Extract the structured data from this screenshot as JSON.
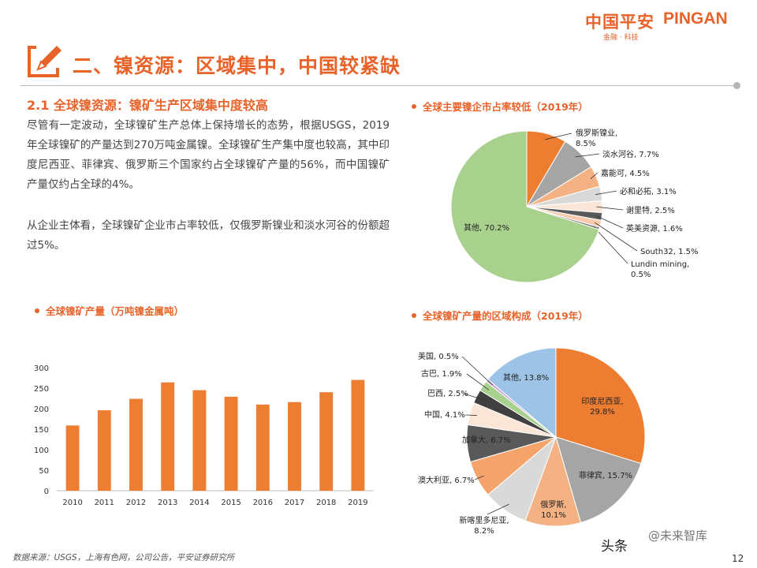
{
  "header": {
    "brand_cn": "中国平安",
    "brand_en": "PINGAN",
    "brand_sub": "金融 · 科技",
    "section_title": "二、镍资源：区域集中，中国较紧缺",
    "subsection_title": "2.1 全球镍资源：镍矿生产区域集中度较高"
  },
  "body": {
    "paragraph1": "尽管有一定波动，全球镍矿生产总体上保持增长的态势，根据USGS，2019年全球镍矿的产量达到270万吨金属镍。全球镍矿生产集中度也较高，其中印度尼西亚、菲律宾、俄罗斯三个国家约占全球镍矿产量的56%，而中国镍矿产量仅约占全球的4%。",
    "paragraph2": "从企业主体看，全球镍矿企业市占率较低，仅俄罗斯镍业和淡水河谷的份额超过5%。"
  },
  "footer": {
    "source": "数据来源：USGS，上海有色网，公司公告，平安证券研究所",
    "page_number": "12",
    "watermark_source": "头条",
    "watermark_badge": "@未来智库"
  },
  "colors": {
    "brand": "#e8632a",
    "bar": "#ed7d31"
  },
  "chart_data": [
    {
      "type": "pie",
      "title": "全球主要镍企市占率较低（2019年）",
      "slices": [
        {
          "label": "俄罗斯镍业, 8.5%",
          "name": "俄罗斯镍业",
          "value": 8.5,
          "color": "#ed7d31"
        },
        {
          "label": "淡水河谷, 7.7%",
          "name": "淡水河谷",
          "value": 7.7,
          "color": "#a5a5a5"
        },
        {
          "label": "嘉能可, 4.5%",
          "name": "嘉能可",
          "value": 4.5,
          "color": "#f4b183"
        },
        {
          "label": "必和必拓, 3.1%",
          "name": "必和必拓",
          "value": 3.1,
          "color": "#d9d9d9"
        },
        {
          "label": "谢里特, 2.5%",
          "name": "谢里特",
          "value": 2.5,
          "color": "#fbe5d6"
        },
        {
          "label": "英美资源, 1.6%",
          "name": "英美资源",
          "value": 1.6,
          "color": "#595959"
        },
        {
          "label": "South32, 1.5%",
          "name": "South32",
          "value": 1.5,
          "color": "#f8cbad"
        },
        {
          "label": "Lundin mining, 0.5%",
          "name": "Lundin mining",
          "value": 0.5,
          "color": "#7f7f7f"
        },
        {
          "label": "其他, 70.2%",
          "name": "其他",
          "value": 70.2,
          "color": "#a9d18e"
        }
      ]
    },
    {
      "type": "bar",
      "title": "全球镍矿产量（万吨镍金属吨）",
      "categories": [
        "2010",
        "2011",
        "2012",
        "2013",
        "2014",
        "2015",
        "2016",
        "2017",
        "2018",
        "2019"
      ],
      "values": [
        159,
        196,
        224,
        264,
        245,
        229,
        210,
        216,
        240,
        270
      ],
      "ylim": [
        0,
        300
      ],
      "yticks": [
        "0",
        "50",
        "100",
        "150",
        "200",
        "250",
        "300"
      ],
      "grid": false
    },
    {
      "type": "pie",
      "title": "全球镍矿产量的区域构成（2019年）",
      "slices": [
        {
          "label": "印度尼西亚, 29.8%",
          "name": "印度尼西亚",
          "value": 29.8,
          "color": "#ed7d31"
        },
        {
          "label": "菲律宾, 15.7%",
          "name": "菲律宾",
          "value": 15.7,
          "color": "#a5a5a5"
        },
        {
          "label": "俄罗斯, 10.1%",
          "name": "俄罗斯",
          "value": 10.1,
          "color": "#f4b183"
        },
        {
          "label": "新喀里多尼亚, 8.2%",
          "name": "新喀里多尼亚",
          "value": 8.2,
          "color": "#d9d9d9"
        },
        {
          "label": "澳大利亚, 6.7%",
          "name": "澳大利亚",
          "value": 6.7,
          "color": "#f4a46b"
        },
        {
          "label": "加拿大, 6.7%",
          "name": "加拿大",
          "value": 6.7,
          "color": "#595959"
        },
        {
          "label": "中国, 4.1%",
          "name": "中国",
          "value": 4.1,
          "color": "#fbe5d6"
        },
        {
          "label": "巴西, 2.5%",
          "name": "巴西",
          "value": 2.5,
          "color": "#404040"
        },
        {
          "label": "古巴, 1.9%",
          "name": "古巴",
          "value": 1.9,
          "color": "#a9d18e"
        },
        {
          "label": "美国, 0.5%",
          "name": "美国",
          "value": 0.5,
          "color": "#c9a0dc"
        },
        {
          "label": "其他, 13.8%",
          "name": "其他",
          "value": 13.8,
          "color": "#9dc3e6"
        }
      ]
    }
  ]
}
